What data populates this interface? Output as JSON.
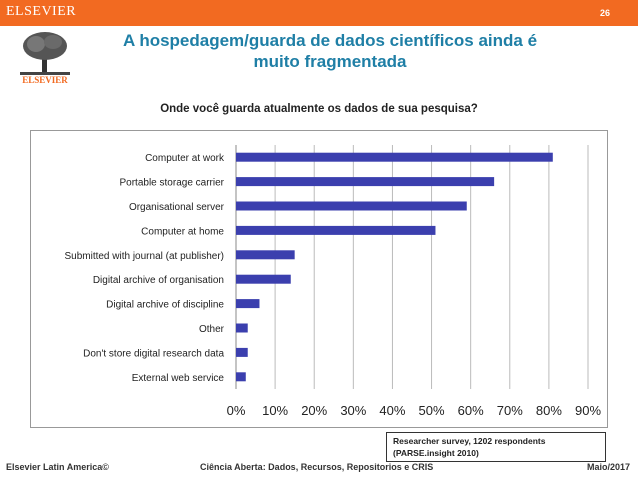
{
  "header": {
    "brand": "ELSEVIER",
    "slide_number": "26",
    "logo_text": "ELSEVIER"
  },
  "title_line1": "A hospedagem/guarda de dados científicos ainda é",
  "title_line2": "muito fragmentada",
  "question": "Onde você guarda atualmente os dados de sua pesquisa?",
  "survey_note": {
    "line1": "Researcher survey, 1202 respondents",
    "line2": "(PARSE.insight 2010)"
  },
  "footer": {
    "left": "Elsevier Latin America©",
    "center": "Ciência Aberta: Dados, Recursos, Repositorios e CRIS",
    "right": "Maio/2017"
  },
  "colors": {
    "accent": "#f26a21",
    "title": "#1f7fa6",
    "bar": "#3b3fae"
  },
  "chart_data": {
    "type": "bar",
    "orientation": "horizontal",
    "categories": [
      "Computer at work",
      "Portable storage carrier",
      "Organisational server",
      "Computer at home",
      "Submitted with journal (at publisher)",
      "Digital archive of organisation",
      "Digital archive of discipline",
      "Other",
      "Don't store digital research data",
      "External web service"
    ],
    "values": [
      81,
      66,
      59,
      51,
      15,
      14,
      6,
      3,
      3,
      2.5
    ],
    "xlim": [
      0,
      90
    ],
    "xticks": [
      0,
      10,
      20,
      30,
      40,
      50,
      60,
      70,
      80,
      90
    ],
    "xtick_labels": [
      "0%",
      "10%",
      "20%",
      "30%",
      "40%",
      "50%",
      "60%",
      "70%",
      "80%",
      "90%"
    ],
    "grid": true
  }
}
